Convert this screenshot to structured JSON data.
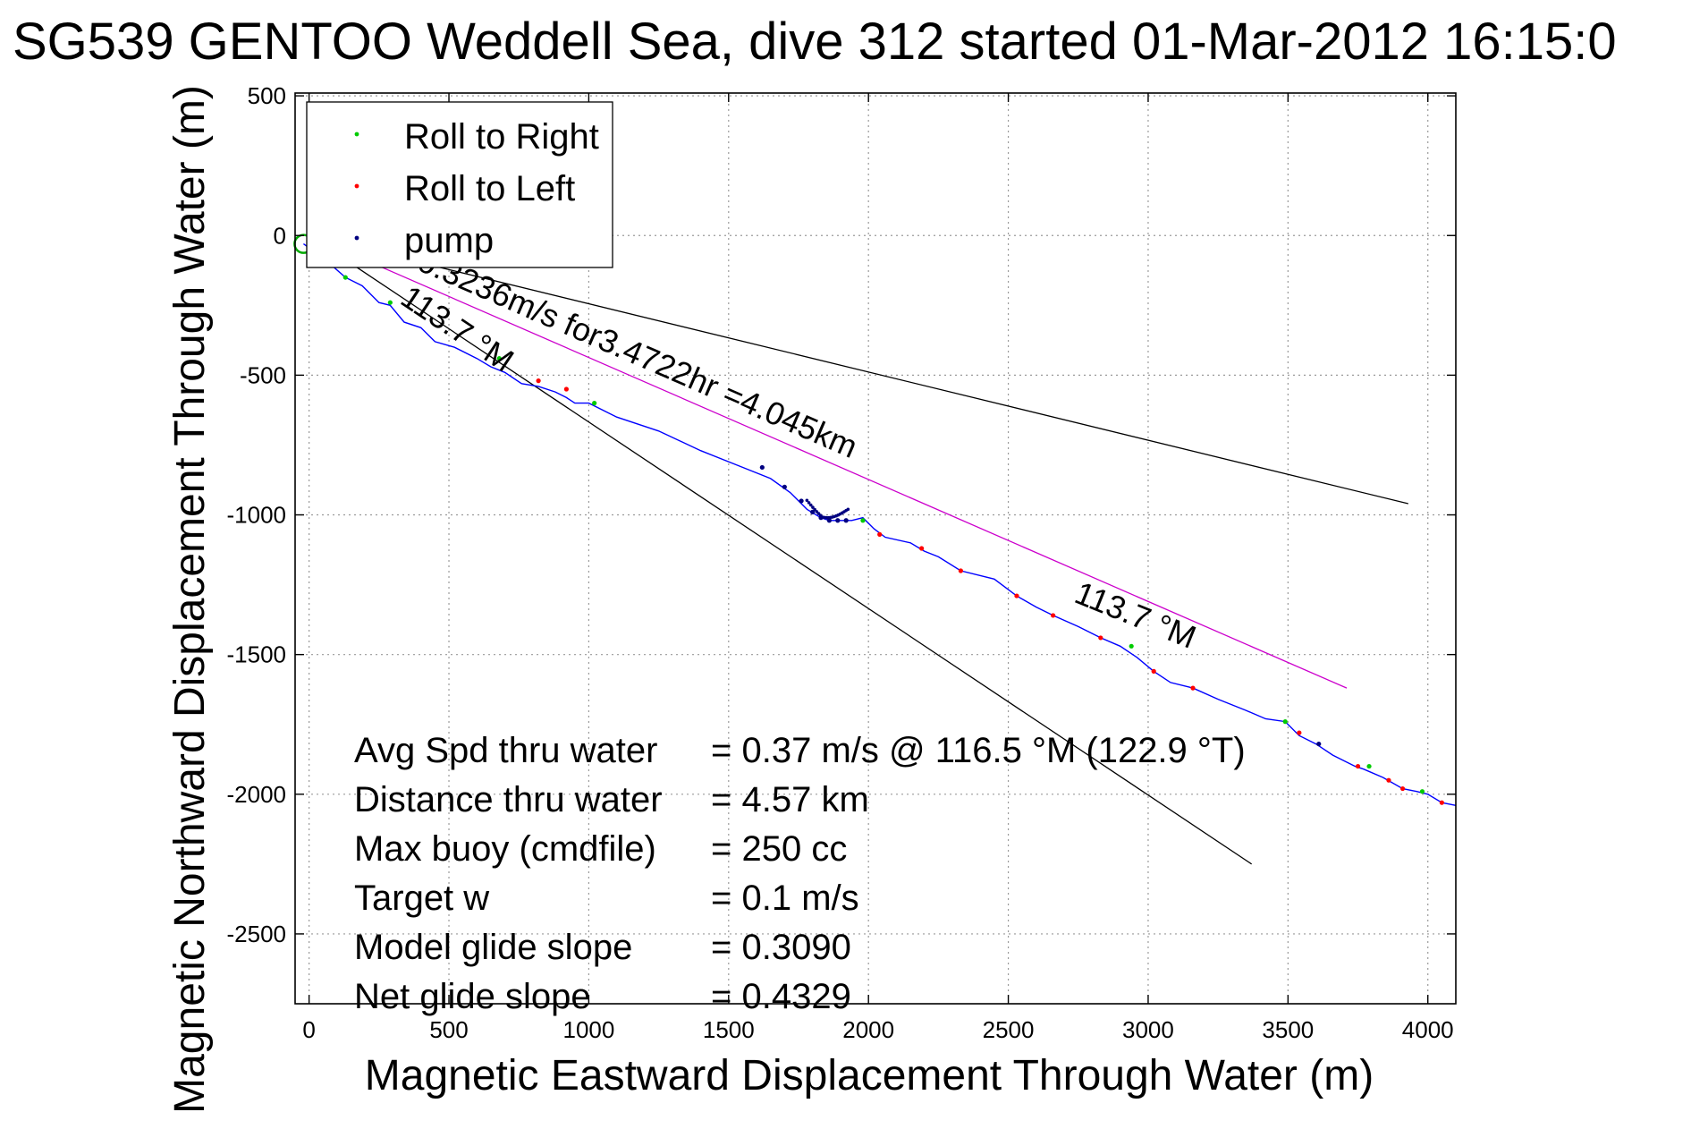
{
  "chart_data": {
    "type": "line",
    "title": "SG539 GENTOO Weddell Sea, dive 312 started 01-Mar-2012 16:15:0",
    "xlabel": "Magnetic Eastward Displacement Through Water (m)",
    "ylabel": "Magnetic Northward Displacement Through Water (m)",
    "xlim": [
      -50,
      4100
    ],
    "ylim": [
      -2750,
      510
    ],
    "xticks": [
      0,
      500,
      1000,
      1500,
      2000,
      2500,
      3000,
      3500,
      4000
    ],
    "yticks": [
      500,
      0,
      -500,
      -1000,
      -1500,
      -2000,
      -2500
    ],
    "grid": true,
    "legend": {
      "placement": "top-left",
      "entries": [
        {
          "label": "Roll to Right",
          "color": "#00cc00"
        },
        {
          "label": "Roll to Left",
          "color": "#ff0000"
        },
        {
          "label": "pump",
          "color": "#000080"
        }
      ]
    },
    "start_marker": {
      "x": -20,
      "y": -30,
      "color": "#00aa00"
    },
    "series": [
      {
        "color": "#0000ff",
        "x": [
          -20,
          50,
          130,
          190,
          250,
          290,
          340,
          400,
          450,
          520,
          600,
          650,
          700,
          760,
          820,
          880,
          920,
          950,
          1000,
          1100,
          1250,
          1400,
          1550,
          1650,
          1720,
          1780,
          1830,
          1860,
          1900,
          1940,
          1980,
          2020,
          2060,
          2150,
          2200,
          2250,
          2330,
          2450,
          2530,
          2600,
          2660,
          2750,
          2830,
          2900,
          2960,
          3020,
          3080,
          3160,
          3250,
          3350,
          3420,
          3490,
          3540,
          3600,
          3660,
          3740,
          3770,
          3840,
          3910,
          3960,
          4000,
          4050,
          4100
        ],
        "y": [
          -30,
          -80,
          -150,
          -180,
          -240,
          -250,
          -310,
          -330,
          -380,
          -400,
          -440,
          -470,
          -490,
          -530,
          -540,
          -560,
          -580,
          -600,
          -600,
          -650,
          -700,
          -770,
          -830,
          -870,
          -920,
          -980,
          -1010,
          -1020,
          -1020,
          -1020,
          -1010,
          -1050,
          -1080,
          -1100,
          -1130,
          -1150,
          -1200,
          -1230,
          -1290,
          -1330,
          -1360,
          -1400,
          -1440,
          -1470,
          -1510,
          -1560,
          -1600,
          -1620,
          -1660,
          -1700,
          -1730,
          -1740,
          -1790,
          -1820,
          -1860,
          -1900,
          -1910,
          -1940,
          -1980,
          -1990,
          -2000,
          -2030,
          -2040
        ]
      }
    ],
    "markers": {
      "roll_right_x": [
        130,
        290,
        680,
        1020,
        1980,
        2940,
        3490,
        3790,
        3980
      ],
      "roll_right_y": [
        -150,
        -240,
        -440,
        -600,
        -1020,
        -1470,
        -1740,
        -1900,
        -1990
      ],
      "roll_left_x": [
        820,
        920,
        2040,
        2190,
        2330,
        2530,
        2660,
        2830,
        3020,
        3160,
        3540,
        3750,
        3860,
        3910,
        4050
      ],
      "roll_left_y": [
        -520,
        -550,
        -1070,
        -1120,
        -1200,
        -1290,
        -1360,
        -1440,
        -1560,
        -1620,
        -1780,
        -1900,
        -1950,
        -1980,
        -2030
      ],
      "pump_x": [
        1620,
        1700,
        1760,
        1800,
        1830,
        1860,
        1890,
        1920,
        3610
      ],
      "pump_y": [
        -830,
        -900,
        -950,
        -990,
        -1010,
        -1020,
        -1020,
        -1020,
        -1820
      ]
    },
    "reference_lines": [
      {
        "label": "113.7 °M",
        "color": "#000000",
        "x": [
          0,
          3370
        ],
        "y": [
          0,
          -2250
        ]
      },
      {
        "label": "",
        "color": "#000000",
        "x": [
          0,
          3930
        ],
        "y": [
          0,
          -960
        ]
      },
      {
        "label": "0.3236m/s for3.4722hr =4.045km",
        "color": "#cc00cc",
        "x": [
          0,
          3710
        ],
        "y": [
          0,
          -1620
        ]
      }
    ],
    "annotations": [
      {
        "text": "0.3236m/s for3.4722hr =4.045km",
        "x": 380,
        "y": -120,
        "angle_deg": 23.5
      },
      {
        "text": "113.7 °M",
        "x": 320,
        "y": -240,
        "angle_deg": 33.7
      },
      {
        "text": "113.7 °M",
        "x": 2730,
        "y": -1310,
        "angle_deg": 22
      }
    ],
    "stats": [
      {
        "label": "Avg Spd thru water",
        "value": "=  0.37 m/s @ 116.5 °M (122.9 °T)"
      },
      {
        "label": "Distance thru water",
        "value": "=  4.57 km"
      },
      {
        "label": "Max buoy (cmdfile)",
        "value": "= 250 cc"
      },
      {
        "label": "Target w",
        "value": "= 0.1 m/s"
      },
      {
        "label": "Model glide slope",
        "value": "= 0.3090"
      },
      {
        "label": "Net glide slope",
        "value": "= 0.4329"
      }
    ]
  }
}
